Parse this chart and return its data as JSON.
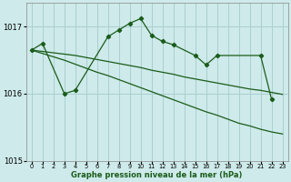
{
  "background_color": "#ceeaea",
  "grid_color": "#aacfcf",
  "line_color": "#1a5c1a",
  "xlabel": "Graphe pression niveau de la mer (hPa)",
  "ylim": [
    1015.0,
    1017.35
  ],
  "xlim": [
    -0.5,
    23.5
  ],
  "yticks": [
    1015,
    1016,
    1017
  ],
  "xticks": [
    0,
    1,
    2,
    3,
    4,
    5,
    6,
    7,
    8,
    9,
    10,
    11,
    12,
    13,
    14,
    15,
    16,
    17,
    18,
    19,
    20,
    21,
    22,
    23
  ],
  "line1_x": [
    0,
    1,
    3,
    4,
    7,
    8,
    9,
    10,
    11,
    12,
    13,
    15,
    16,
    17,
    21,
    22
  ],
  "line1_y": [
    1016.65,
    1016.75,
    1016.0,
    1016.05,
    1016.85,
    1016.95,
    1017.05,
    1017.12,
    1016.87,
    1016.78,
    1016.73,
    1016.57,
    1016.43,
    1016.57,
    1016.57,
    1015.92
  ],
  "line2_x": [
    0,
    1,
    2,
    3,
    4,
    5,
    6,
    7,
    8,
    9,
    10,
    11,
    12,
    13,
    14,
    15,
    16,
    17,
    18,
    19,
    20,
    21,
    22,
    23
  ],
  "line2_y": [
    1016.65,
    1016.63,
    1016.61,
    1016.59,
    1016.57,
    1016.54,
    1016.51,
    1016.48,
    1016.45,
    1016.42,
    1016.39,
    1016.35,
    1016.32,
    1016.29,
    1016.25,
    1016.22,
    1016.19,
    1016.16,
    1016.13,
    1016.1,
    1016.07,
    1016.05,
    1016.02,
    1015.99
  ],
  "line3_x": [
    0,
    1,
    2,
    3,
    4,
    5,
    6,
    7,
    8,
    9,
    10,
    11,
    12,
    13,
    14,
    15,
    16,
    17,
    18,
    19,
    20,
    21,
    22,
    23
  ],
  "line3_y": [
    1016.65,
    1016.6,
    1016.55,
    1016.5,
    1016.44,
    1016.38,
    1016.32,
    1016.27,
    1016.21,
    1016.15,
    1016.09,
    1016.03,
    1015.97,
    1015.91,
    1015.85,
    1015.79,
    1015.73,
    1015.68,
    1015.62,
    1015.56,
    1015.52,
    1015.47,
    1015.43,
    1015.4
  ]
}
